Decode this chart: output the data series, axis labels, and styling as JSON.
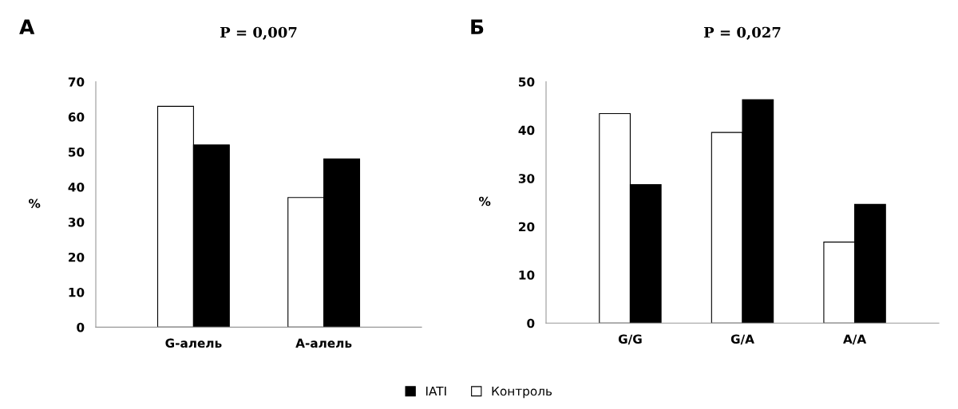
{
  "chart_data": [
    {
      "type": "bar",
      "title": "P = 0,007",
      "annotations": [
        "А"
      ],
      "ylabel": "%",
      "categories": [
        "G-алель",
        "А-алель"
      ],
      "series": [
        {
          "name": "Контроль",
          "color": "#ffffff",
          "values": [
            63,
            37
          ]
        },
        {
          "name": "IATI",
          "color": "#000000",
          "values": [
            52,
            48
          ]
        }
      ],
      "ylim": [
        0,
        70
      ],
      "yticks": [
        0,
        10,
        20,
        30,
        40,
        50,
        60,
        70
      ],
      "legend": "bottom"
    },
    {
      "type": "bar",
      "title": "P = 0,027",
      "annotations": [
        "Б"
      ],
      "ylabel": "%",
      "categories": [
        "G/G",
        "G/A",
        "A/A"
      ],
      "series": [
        {
          "color": "#ffffff",
          "values": [
            43.4,
            39.5,
            16.8
          ]
        },
        {
          "color": "#000000",
          "values": [
            28.7,
            46.3,
            24.6
          ]
        }
      ],
      "ylim": [
        0,
        50
      ],
      "yticks": [
        0,
        10,
        20,
        30,
        40,
        50
      ]
    }
  ]
}
